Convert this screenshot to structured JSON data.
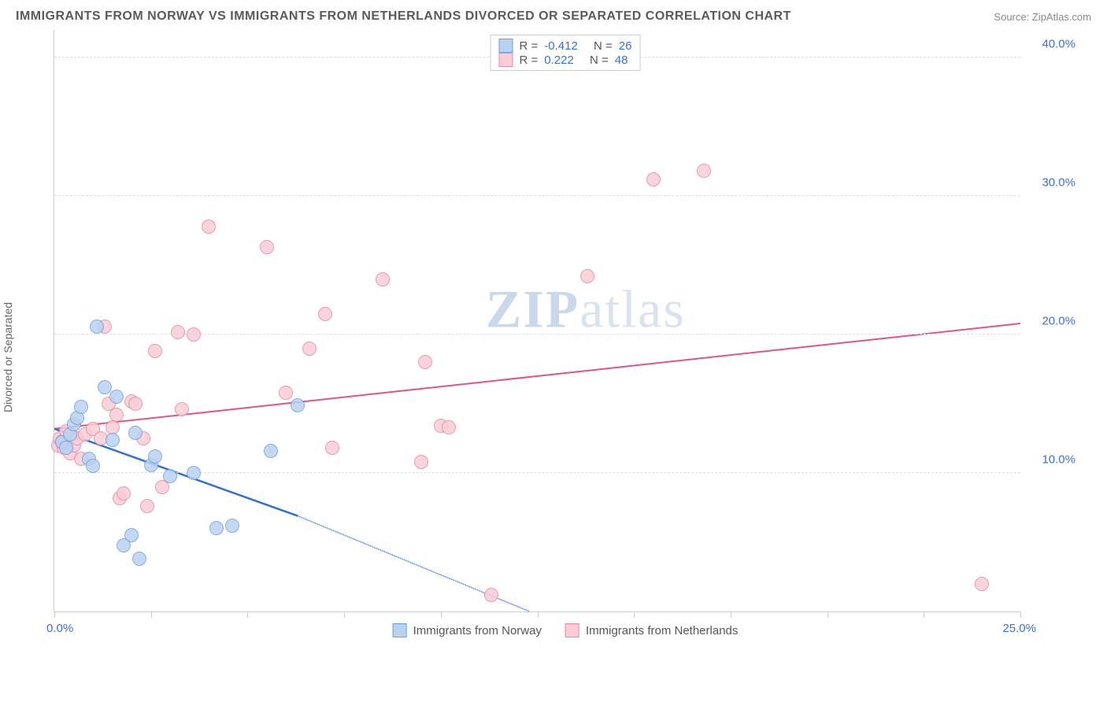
{
  "title": "IMMIGRANTS FROM NORWAY VS IMMIGRANTS FROM NETHERLANDS DIVORCED OR SEPARATED CORRELATION CHART",
  "source_label": "Source:",
  "source_name": "ZipAtlas.com",
  "ylabel": "Divorced or Separated",
  "watermark_a": "ZIP",
  "watermark_b": "atlas",
  "chart": {
    "type": "scatter",
    "xlim": [
      0,
      25
    ],
    "ylim": [
      0,
      42
    ],
    "x_ticks": [
      0,
      2.5,
      5,
      7.5,
      10,
      12.5,
      15,
      17.5,
      20,
      22.5,
      25
    ],
    "y_ticks": [
      10,
      20,
      30,
      40
    ],
    "y_tick_labels": [
      "10.0%",
      "20.0%",
      "30.0%",
      "40.0%"
    ],
    "x_tick_label_left": "0.0%",
    "x_tick_label_right": "25.0%",
    "background_color": "#ffffff",
    "grid_color": "#dddddd",
    "axis_color": "#cccccc",
    "tick_label_color": "#3b6fd6",
    "point_radius": 9,
    "series": [
      {
        "name": "Immigrants from Norway",
        "fill": "#b9d2f0",
        "stroke": "#6fa0e0",
        "line_color": "#2f6fd6",
        "r_value": "-0.412",
        "n_value": "26",
        "trend": {
          "x1": 0,
          "y1": 13.2,
          "x2": 6.3,
          "y2": 6.9,
          "dash_to_x": 12.3,
          "dash_to_y": 0
        },
        "points": [
          [
            0.2,
            12.2
          ],
          [
            0.3,
            11.8
          ],
          [
            0.4,
            12.8
          ],
          [
            0.5,
            13.5
          ],
          [
            0.6,
            14.0
          ],
          [
            0.7,
            14.8
          ],
          [
            0.9,
            11.0
          ],
          [
            1.0,
            10.5
          ],
          [
            1.1,
            20.6
          ],
          [
            1.3,
            16.2
          ],
          [
            1.5,
            12.4
          ],
          [
            1.6,
            15.5
          ],
          [
            1.8,
            4.8
          ],
          [
            2.0,
            5.5
          ],
          [
            2.1,
            12.9
          ],
          [
            2.2,
            3.8
          ],
          [
            2.5,
            10.6
          ],
          [
            2.6,
            11.2
          ],
          [
            3.0,
            9.8
          ],
          [
            3.6,
            10.0
          ],
          [
            4.2,
            6.0
          ],
          [
            4.6,
            6.2
          ],
          [
            5.6,
            11.6
          ],
          [
            6.3,
            14.9
          ]
        ]
      },
      {
        "name": "Immigrants from Netherlands",
        "fill": "#f8cdd7",
        "stroke": "#e88aa0",
        "line_color": "#e0567c",
        "r_value": "0.222",
        "n_value": "48",
        "trend": {
          "x1": 0,
          "y1": 13.2,
          "x2": 25,
          "y2": 20.8
        },
        "points": [
          [
            0.1,
            12.0
          ],
          [
            0.15,
            12.5
          ],
          [
            0.2,
            12.3
          ],
          [
            0.25,
            11.8
          ],
          [
            0.3,
            13.0
          ],
          [
            0.35,
            12.2
          ],
          [
            0.4,
            11.4
          ],
          [
            0.45,
            12.7
          ],
          [
            0.5,
            12.0
          ],
          [
            0.6,
            12.5
          ],
          [
            0.7,
            11.0
          ],
          [
            0.8,
            12.8
          ],
          [
            1.0,
            13.2
          ],
          [
            1.2,
            12.5
          ],
          [
            1.3,
            20.6
          ],
          [
            1.4,
            15.0
          ],
          [
            1.5,
            13.3
          ],
          [
            1.6,
            14.2
          ],
          [
            1.7,
            8.2
          ],
          [
            1.8,
            8.5
          ],
          [
            2.0,
            15.2
          ],
          [
            2.1,
            15.0
          ],
          [
            2.3,
            12.5
          ],
          [
            2.4,
            7.6
          ],
          [
            2.6,
            18.8
          ],
          [
            2.8,
            9.0
          ],
          [
            3.2,
            20.2
          ],
          [
            3.3,
            14.6
          ],
          [
            3.6,
            20.0
          ],
          [
            4.0,
            27.8
          ],
          [
            5.5,
            26.3
          ],
          [
            6.0,
            15.8
          ],
          [
            6.6,
            19.0
          ],
          [
            7.0,
            21.5
          ],
          [
            7.2,
            11.8
          ],
          [
            8.5,
            24.0
          ],
          [
            9.5,
            10.8
          ],
          [
            9.6,
            18.0
          ],
          [
            10.0,
            13.4
          ],
          [
            10.2,
            13.3
          ],
          [
            11.3,
            1.2
          ],
          [
            13.8,
            24.2
          ],
          [
            15.5,
            31.2
          ],
          [
            16.8,
            31.8
          ],
          [
            24.0,
            2.0
          ]
        ]
      }
    ]
  },
  "legend_top": {
    "r_label": "R =",
    "n_label": "N ="
  }
}
